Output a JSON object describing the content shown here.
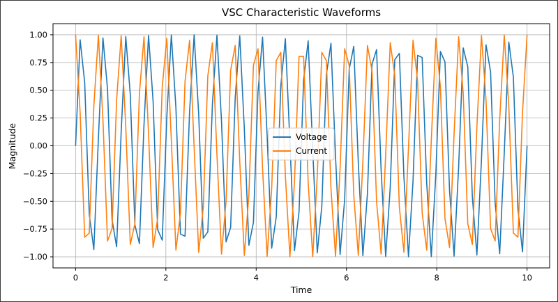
{
  "chart_data": {
    "type": "line",
    "title": "VSC Characteristic Waveforms",
    "xlabel": "Time",
    "ylabel": "Magnitude",
    "xlim": [
      -0.5,
      10.5
    ],
    "ylim": [
      -1.1,
      1.1
    ],
    "xticks": [
      0,
      2,
      4,
      6,
      8,
      10
    ],
    "yticks": [
      -1.0,
      -0.75,
      -0.5,
      -0.25,
      0.0,
      0.25,
      0.5,
      0.75,
      1.0
    ],
    "xtick_labels": [
      "0",
      "2",
      "4",
      "6",
      "8",
      "10"
    ],
    "ytick_labels": [
      "−1.00",
      "−0.75",
      "−0.50",
      "−0.25",
      "0.00",
      "0.25",
      "0.50",
      "0.75",
      "1.00"
    ],
    "grid": true,
    "legend_position": "center",
    "sampling": {
      "x_start": 0,
      "x_end": 10,
      "num_points": 100
    },
    "series": [
      {
        "name": "Voltage",
        "function": "sin",
        "frequency": 2,
        "color": "#1f77b4"
      },
      {
        "name": "Current",
        "function": "cos",
        "frequency": 2,
        "color": "#ff7f0e"
      }
    ]
  }
}
